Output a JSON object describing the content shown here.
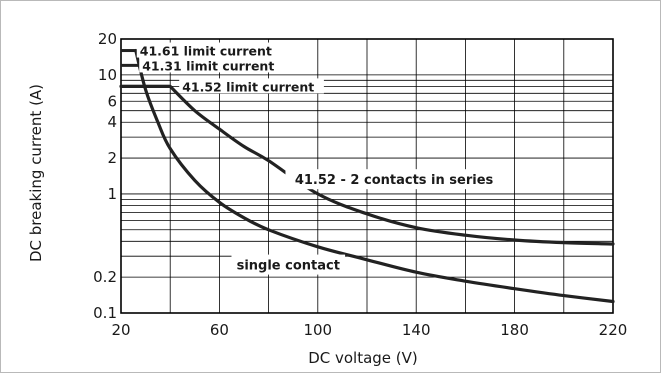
{
  "chart_data": {
    "type": "line",
    "xlabel": "DC voltage (V)",
    "ylabel": "DC breaking current (A)",
    "xlim": [
      20,
      220
    ],
    "ylim": [
      0.1,
      20
    ],
    "yscale": "log",
    "grid": true,
    "x_ticks": [
      20,
      60,
      100,
      140,
      180,
      220
    ],
    "x_tick_labels": [
      "20",
      "60",
      "100",
      "140",
      "180",
      "220"
    ],
    "y_ticks": [
      0.1,
      0.2,
      1,
      2,
      4,
      6,
      10,
      20
    ],
    "y_tick_labels": [
      "0.1",
      "0.2",
      "1",
      "2",
      "4",
      "6",
      "10",
      "20"
    ],
    "series": [
      {
        "name": "41.52 - 2 contacts in series",
        "x": [
          20,
          40,
          50,
          60,
          70,
          80,
          100,
          120,
          140,
          160,
          180,
          200,
          220
        ],
        "y": [
          8,
          8,
          5,
          3.5,
          2.5,
          1.9,
          1.0,
          0.68,
          0.52,
          0.45,
          0.41,
          0.39,
          0.38
        ]
      },
      {
        "name": "single contact",
        "x": [
          26,
          30,
          35,
          40,
          50,
          60,
          70,
          80,
          100,
          120,
          140,
          160,
          180,
          200,
          220
        ],
        "y": [
          16,
          7.5,
          4.0,
          2.4,
          1.3,
          0.85,
          0.63,
          0.5,
          0.36,
          0.28,
          0.22,
          0.185,
          0.16,
          0.14,
          0.125
        ]
      }
    ],
    "limit_lines": [
      {
        "label": "41.61 limit current",
        "value": 16,
        "x_start": 20,
        "x_end": 26
      },
      {
        "label": "41.31 limit current",
        "value": 12,
        "x_start": 20,
        "x_end": 27
      },
      {
        "label": "41.52 limit current",
        "value": 8,
        "x_start": 20,
        "x_end": 40
      }
    ],
    "annotations": [
      {
        "text": "41.52 - 2 contacts in series",
        "x": 131,
        "y": 1.33
      },
      {
        "text": "single contact",
        "x": 88,
        "y": 0.255
      }
    ]
  }
}
